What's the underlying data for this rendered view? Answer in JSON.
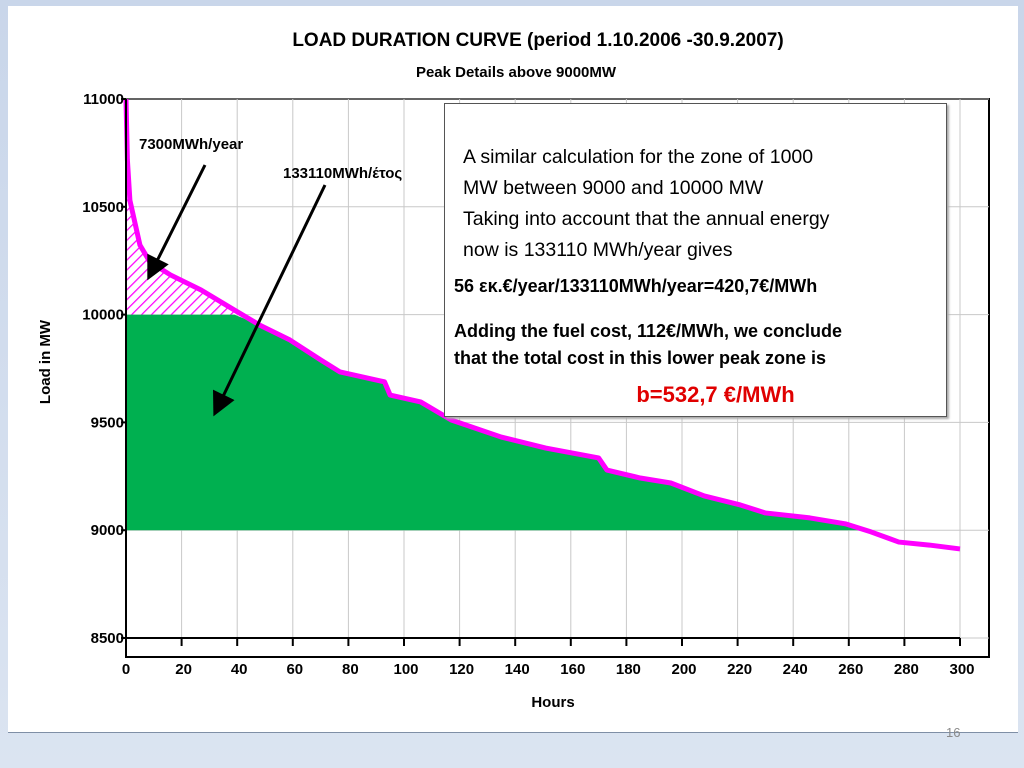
{
  "chart_data": {
    "type": "area",
    "title": "LOAD DURATION CURVE (period 1.10.2006 -30.9.2007)",
    "subtitle": "Peak Details above 9000MW",
    "xlabel": "Hours",
    "ylabel": "Load in MW",
    "xlim": [
      0,
      300
    ],
    "ylim": [
      8500,
      11000
    ],
    "x_ticks": [
      "0",
      "20",
      "40",
      "60",
      "80",
      "100",
      "120",
      "140",
      "160",
      "180",
      "200",
      "220",
      "240",
      "260",
      "280",
      "300"
    ],
    "y_ticks": [
      "11000",
      "10500",
      "10000",
      "9500",
      "9000",
      "8500"
    ],
    "grid": true,
    "series": [
      {
        "name": "Load duration",
        "color": "#ff00ff",
        "x": [
          0,
          0.5,
          1.4,
          5,
          8.6,
          16,
          27,
          39,
          48,
          59,
          70,
          77,
          93,
          95,
          106,
          117,
          135,
          151,
          170,
          173,
          185,
          196,
          208,
          221,
          230,
          246,
          259,
          268,
          278,
          289,
          300
        ],
        "y": [
          11000,
          10717,
          10530,
          10323,
          10244,
          10184,
          10114,
          10021,
          9952,
          9882,
          9790,
          9734,
          9688,
          9627,
          9595,
          9511,
          9432,
          9381,
          9335,
          9279,
          9242,
          9219,
          9159,
          9117,
          9080,
          9057,
          9029,
          8992,
          8945,
          8931,
          8913
        ]
      }
    ],
    "zones": [
      {
        "name": "peak zone above 10000MW",
        "from": 10000,
        "to": 11000,
        "fill": "hatched magenta",
        "label": "7300MWh/year"
      },
      {
        "name": "lower peak zone 9000-10000MW",
        "from": 9000,
        "to": 10000,
        "fill": "#00b050",
        "label": "133110MWh/έτος"
      }
    ]
  },
  "textbox": {
    "line1": "A similar calculation for the zone  of 1000",
    "line2": "MW between 9000 and 10000 MW",
    "line3": "Taking into account that the annual energy",
    "line4": "now is 133110 MWh/year  gives",
    "formula": "56 εκ.€/year/133110MWh/year=420,7€/MWh",
    "conclusion1": "Adding the fuel cost, 112€/MWh, we conclude",
    "conclusion2": "that the total cost in this lower peak zone is",
    "result": "b=532,7 €/MWh"
  },
  "page_number": "16"
}
